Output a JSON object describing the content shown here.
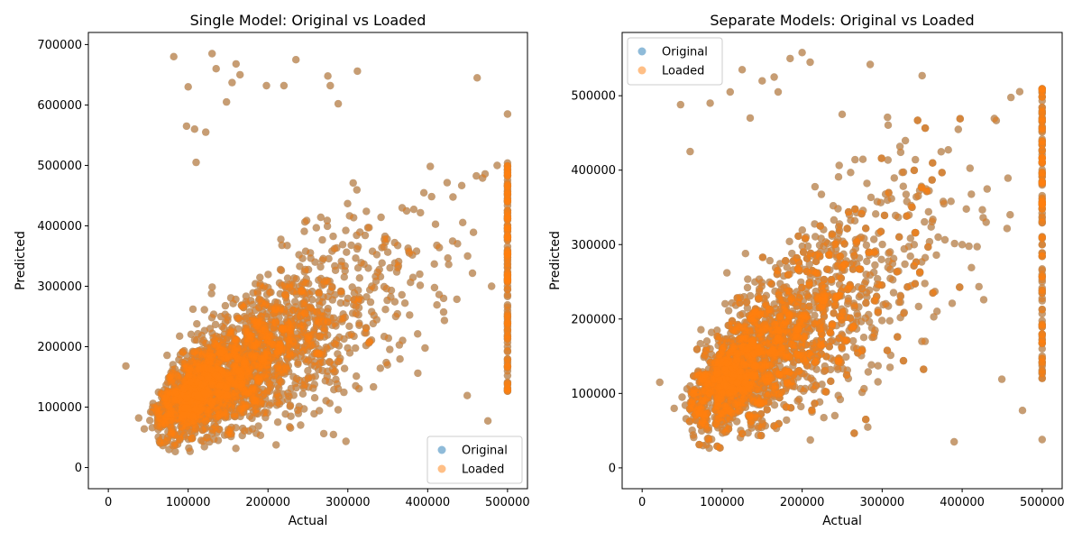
{
  "chart_data": [
    {
      "type": "scatter",
      "title": "Single Model: Original vs Loaded",
      "xlabel": "Actual",
      "ylabel": "Predicted",
      "xlim": [
        -25000,
        525000
      ],
      "ylim": [
        -35000,
        720000
      ],
      "xticks": [
        0,
        100000,
        200000,
        300000,
        400000,
        500000
      ],
      "yticks": [
        0,
        100000,
        200000,
        300000,
        400000,
        500000,
        600000,
        700000
      ],
      "grid": false,
      "legend": "bottom-right",
      "series": [
        {
          "name": "Original",
          "color": "#1f77b4",
          "opacity": 0.5,
          "x": [
            22000,
            38000,
            45000,
            52000,
            60000,
            68000,
            75000,
            82000,
            95000,
            110000,
            125000,
            140000,
            160000,
            185000,
            210000,
            240000,
            270000,
            300000,
            330000,
            360000,
            390000,
            420000,
            450000,
            480000,
            500001,
            500001,
            500001
          ],
          "y": [
            168000,
            82000,
            64000,
            78000,
            95000,
            120000,
            88000,
            140000,
            130000,
            160000,
            150000,
            190000,
            210000,
            200000,
            240000,
            260000,
            230000,
            280000,
            300000,
            250000,
            320000,
            280000,
            350000,
            300000,
            450000,
            320000,
            200000
          ]
        },
        {
          "name": "Loaded",
          "color": "#ff7f0e",
          "opacity": 0.5,
          "x": [
            22000,
            38000,
            45000,
            52000,
            60000,
            68000,
            75000,
            82000,
            95000,
            110000,
            125000,
            140000,
            160000,
            185000,
            210000,
            240000,
            270000,
            300000,
            330000,
            360000,
            390000,
            420000,
            450000,
            480000,
            500001,
            500001,
            500001
          ],
          "y": [
            168000,
            82000,
            64000,
            78000,
            95000,
            120000,
            88000,
            140000,
            130000,
            160000,
            150000,
            190000,
            210000,
            200000,
            240000,
            260000,
            230000,
            280000,
            300000,
            250000,
            320000,
            280000,
            350000,
            300000,
            450000,
            320000,
            200000
          ]
        }
      ],
      "outliers": {
        "x": [
          82000,
          98000,
          100000,
          108000,
          110000,
          122000,
          130000,
          135000,
          148000,
          155000,
          160000,
          165000,
          198000,
          220000,
          235000,
          275000,
          278000,
          288000,
          312000,
          462000,
          500001
        ],
        "y": [
          680000,
          565000,
          630000,
          560000,
          505000,
          555000,
          685000,
          660000,
          605000,
          637000,
          668000,
          650000,
          632000,
          632000,
          675000,
          648000,
          632000,
          602000,
          656000,
          645000,
          585000
        ]
      }
    },
    {
      "type": "scatter",
      "title": "Separate Models: Original vs Loaded",
      "xlabel": "Actual",
      "ylabel": "Predicted",
      "xlim": [
        -25000,
        525000
      ],
      "ylim": [
        -28000,
        585000
      ],
      "xticks": [
        0,
        100000,
        200000,
        300000,
        400000,
        500000
      ],
      "yticks": [
        0,
        100000,
        200000,
        300000,
        400000,
        500000
      ],
      "grid": false,
      "legend": "top-left",
      "series": [
        {
          "name": "Original",
          "color": "#1f77b4",
          "opacity": 0.5,
          "x": [
            22000,
            40000,
            50000,
            60000,
            70000,
            85000,
            100000,
            120000,
            140000,
            165000,
            190000,
            220000,
            250000,
            280000,
            310000,
            340000,
            370000,
            400000,
            430000,
            460000,
            500001,
            500001,
            500001
          ],
          "y": [
            115000,
            80000,
            95000,
            110000,
            130000,
            160000,
            170000,
            190000,
            200000,
            220000,
            230000,
            250000,
            270000,
            260000,
            290000,
            300000,
            310000,
            300000,
            330000,
            340000,
            480000,
            300000,
            150000
          ]
        },
        {
          "name": "Loaded",
          "color": "#ff7f0e",
          "opacity": 0.5,
          "x": [
            22000,
            40000,
            50000,
            60000,
            70000,
            85000,
            100000,
            120000,
            140000,
            165000,
            190000,
            220000,
            250000,
            280000,
            310000,
            340000,
            370000,
            400000,
            430000,
            460000,
            500001,
            500001,
            500001
          ],
          "y": [
            115000,
            80000,
            95000,
            110000,
            130000,
            160000,
            170000,
            190000,
            200000,
            220000,
            230000,
            250000,
            270000,
            260000,
            290000,
            300000,
            310000,
            300000,
            330000,
            340000,
            480000,
            300000,
            150000
          ]
        }
      ],
      "outliers": {
        "x": [
          48000,
          60000,
          85000,
          110000,
          125000,
          135000,
          150000,
          165000,
          170000,
          185000,
          200000,
          210000,
          250000,
          285000,
          350000,
          390000,
          500001
        ],
        "y": [
          488000,
          425000,
          490000,
          505000,
          535000,
          470000,
          520000,
          525000,
          505000,
          550000,
          558000,
          545000,
          475000,
          542000,
          527000,
          35000,
          38000
        ]
      }
    }
  ]
}
